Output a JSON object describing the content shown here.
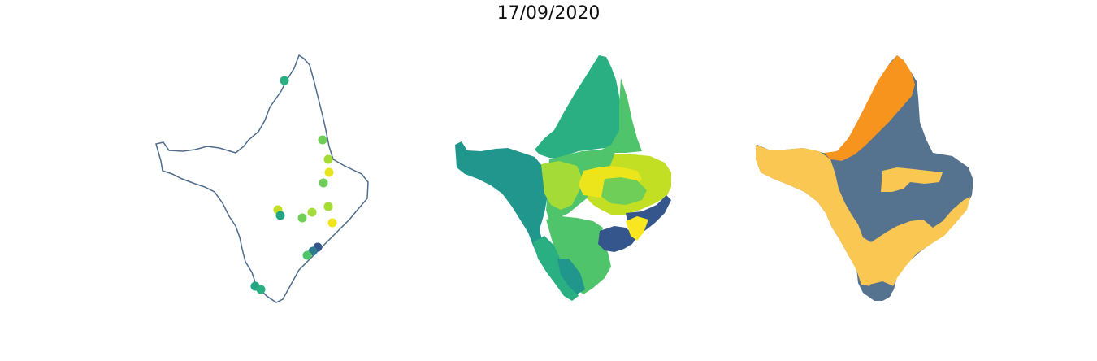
{
  "title": "17/09/2020",
  "colors": {
    "outline": "#4f6c8c",
    "viridis_dark_blue": "#34568c",
    "viridis_teal": "#21908d",
    "viridis_green_teal": "#2aaf82",
    "viridis_green": "#4fc46a",
    "viridis_light_green": "#6ece58",
    "viridis_lime": "#a5db36",
    "viridis_yellow_green": "#c2df23",
    "viridis_yellow": "#f0e41e",
    "slate": "#55728f",
    "amber": "#f9c752",
    "orange": "#f7941d"
  },
  "panels": [
    {
      "name": "stations-scatter"
    },
    {
      "name": "regions-viridis"
    },
    {
      "name": "regions-category"
    }
  ]
}
